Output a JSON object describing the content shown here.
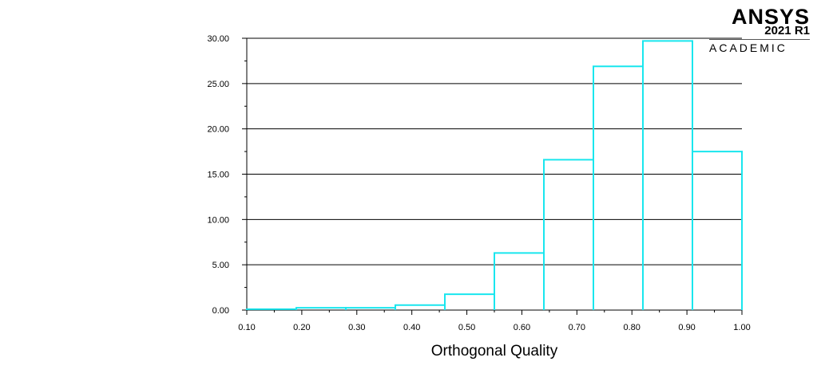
{
  "logo": {
    "brand": "ANSYS",
    "version": "2021 R1",
    "edition": "ACADEMIC"
  },
  "colors": {
    "bars": "#19e6ee",
    "grid": "#000000"
  },
  "chart_data": {
    "type": "bar",
    "subtype": "histogram",
    "xlabel": "Orthogonal Quality",
    "ylabel": "",
    "xlim": [
      0.1,
      1.0
    ],
    "ylim": [
      0,
      30
    ],
    "grid": "horizontal",
    "x_ticks": [
      "0.10",
      "0.20",
      "0.30",
      "0.40",
      "0.50",
      "0.60",
      "0.70",
      "0.80",
      "0.90",
      "1.00"
    ],
    "y_ticks": [
      "0.00",
      "5.00",
      "10.00",
      "15.00",
      "20.00",
      "25.00",
      "30.00"
    ],
    "bins": [
      {
        "x0": 0.1,
        "x1": 0.19,
        "value": 0.1
      },
      {
        "x0": 0.19,
        "x1": 0.28,
        "value": 0.25
      },
      {
        "x0": 0.28,
        "x1": 0.37,
        "value": 0.25
      },
      {
        "x0": 0.37,
        "x1": 0.46,
        "value": 0.55
      },
      {
        "x0": 0.46,
        "x1": 0.55,
        "value": 1.75
      },
      {
        "x0": 0.55,
        "x1": 0.64,
        "value": 6.3
      },
      {
        "x0": 0.64,
        "x1": 0.73,
        "value": 16.6
      },
      {
        "x0": 0.73,
        "x1": 0.82,
        "value": 26.9
      },
      {
        "x0": 0.82,
        "x1": 0.91,
        "value": 29.7
      },
      {
        "x0": 0.91,
        "x1": 1.0,
        "value": 17.5
      }
    ]
  }
}
